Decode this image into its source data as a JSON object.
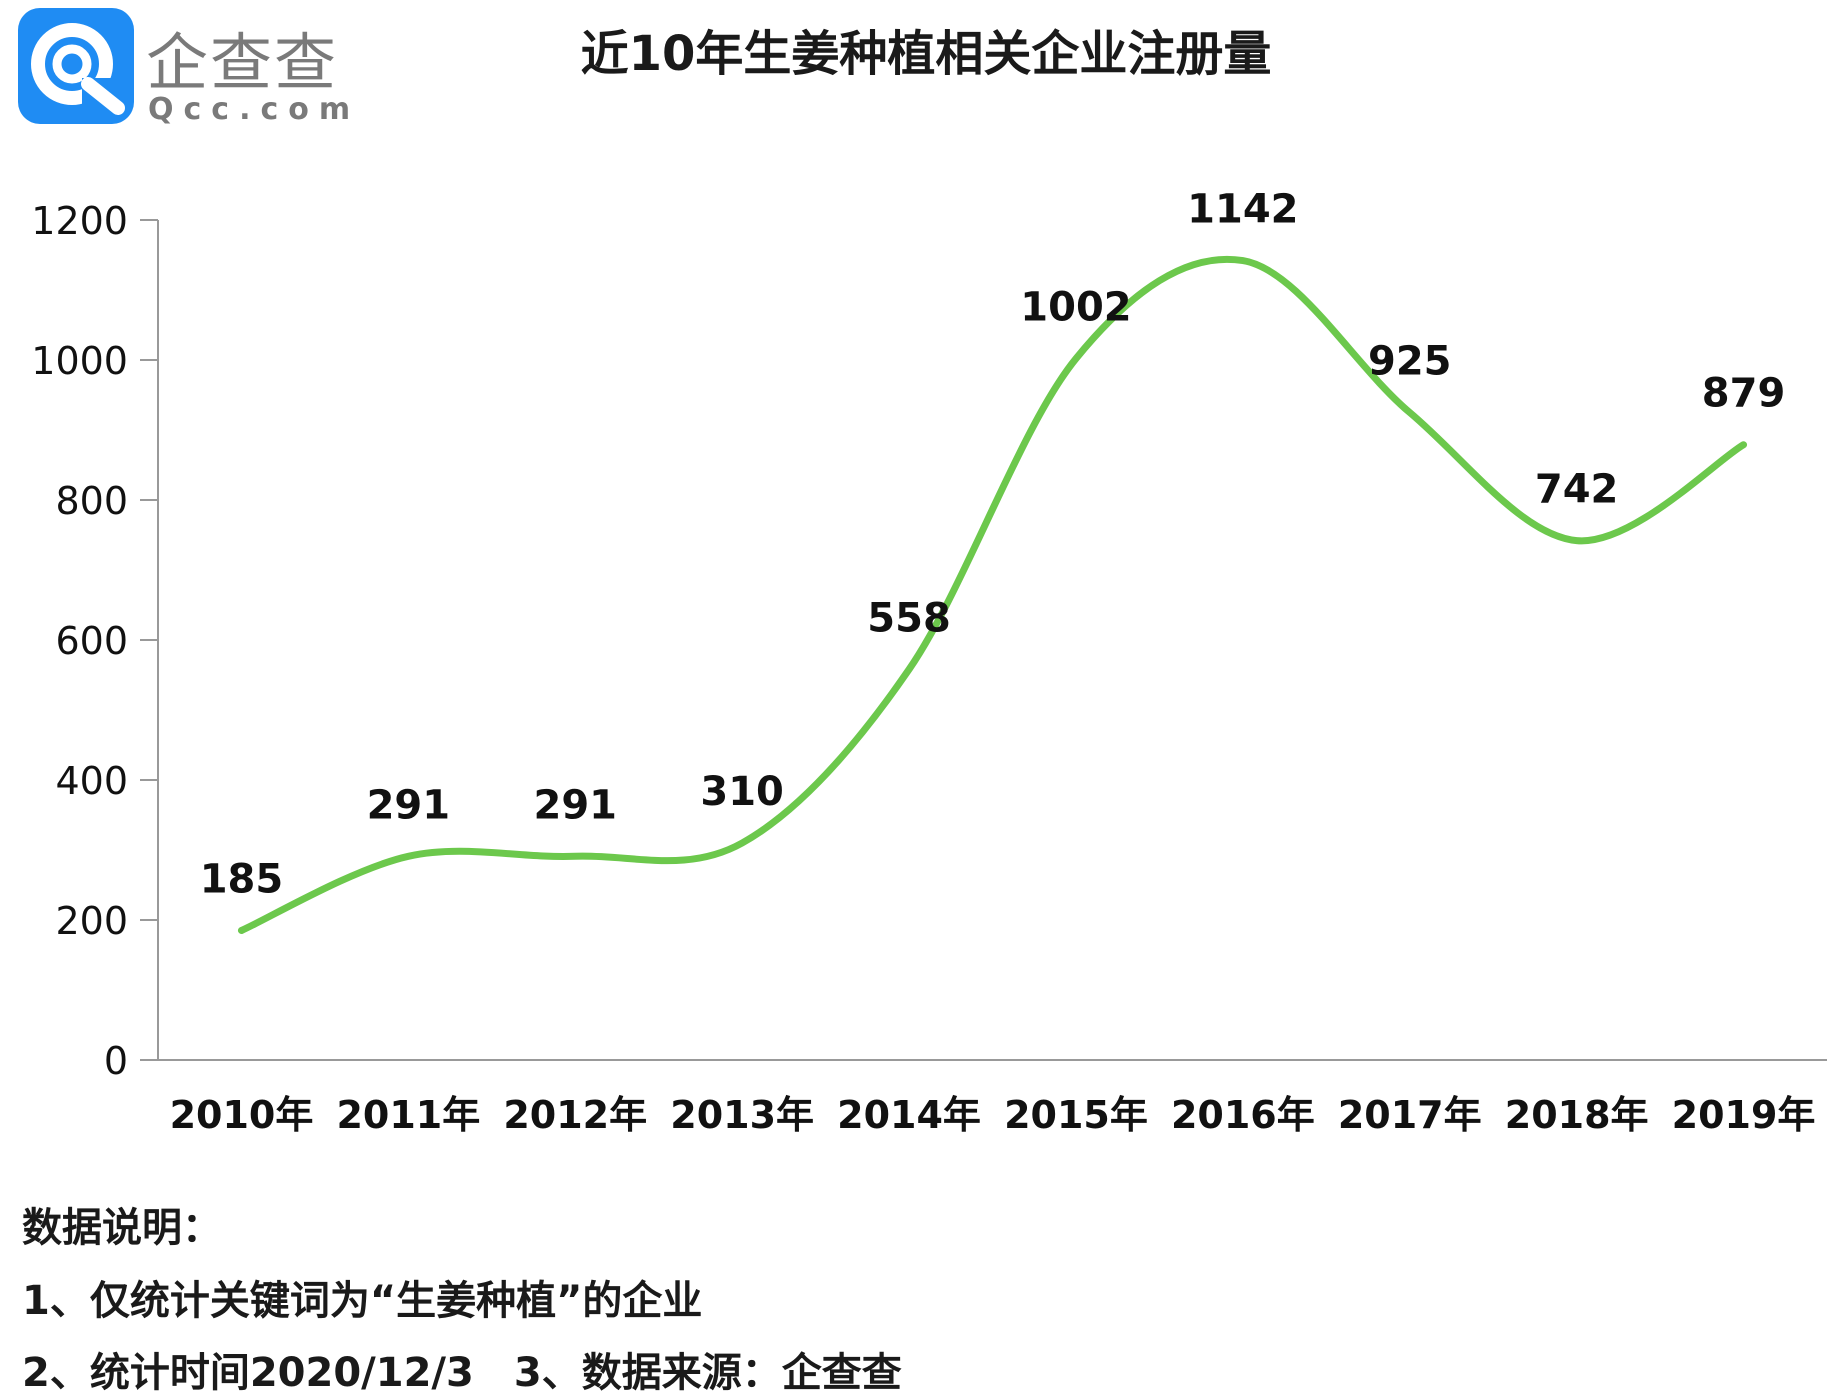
{
  "logo": {
    "name_cn": "企查查",
    "name_en": "Qcc.com"
  },
  "colors": {
    "line": "#6cc84c",
    "axis": "#999999",
    "logo_blue": "#1f8cf3"
  },
  "chart_data": {
    "type": "line",
    "title": "近10年生姜种植相关企业注册量",
    "categories": [
      "2010年",
      "2011年",
      "2012年",
      "2013年",
      "2014年",
      "2015年",
      "2016年",
      "2017年",
      "2018年",
      "2019年"
    ],
    "series": [
      {
        "values": [
          185,
          291,
          291,
          310,
          558,
          1002,
          1142,
          925,
          742,
          879
        ]
      }
    ],
    "data_labels": [
      "185",
      "291",
      "291",
      "310",
      "558",
      "1002",
      "1142",
      "925",
      "742",
      "879"
    ],
    "y_ticks": [
      "0",
      "200",
      "400",
      "600",
      "800",
      "1000",
      "1200"
    ],
    "ylim": [
      0,
      1200
    ],
    "grid": false,
    "legend": "none",
    "smooth": true
  },
  "notes": {
    "heading": "数据说明：",
    "line1": "1、仅统计关键词为“生姜种植”的企业",
    "line2": "2、统计时间2020/12/3　3、数据来源：企查查"
  }
}
